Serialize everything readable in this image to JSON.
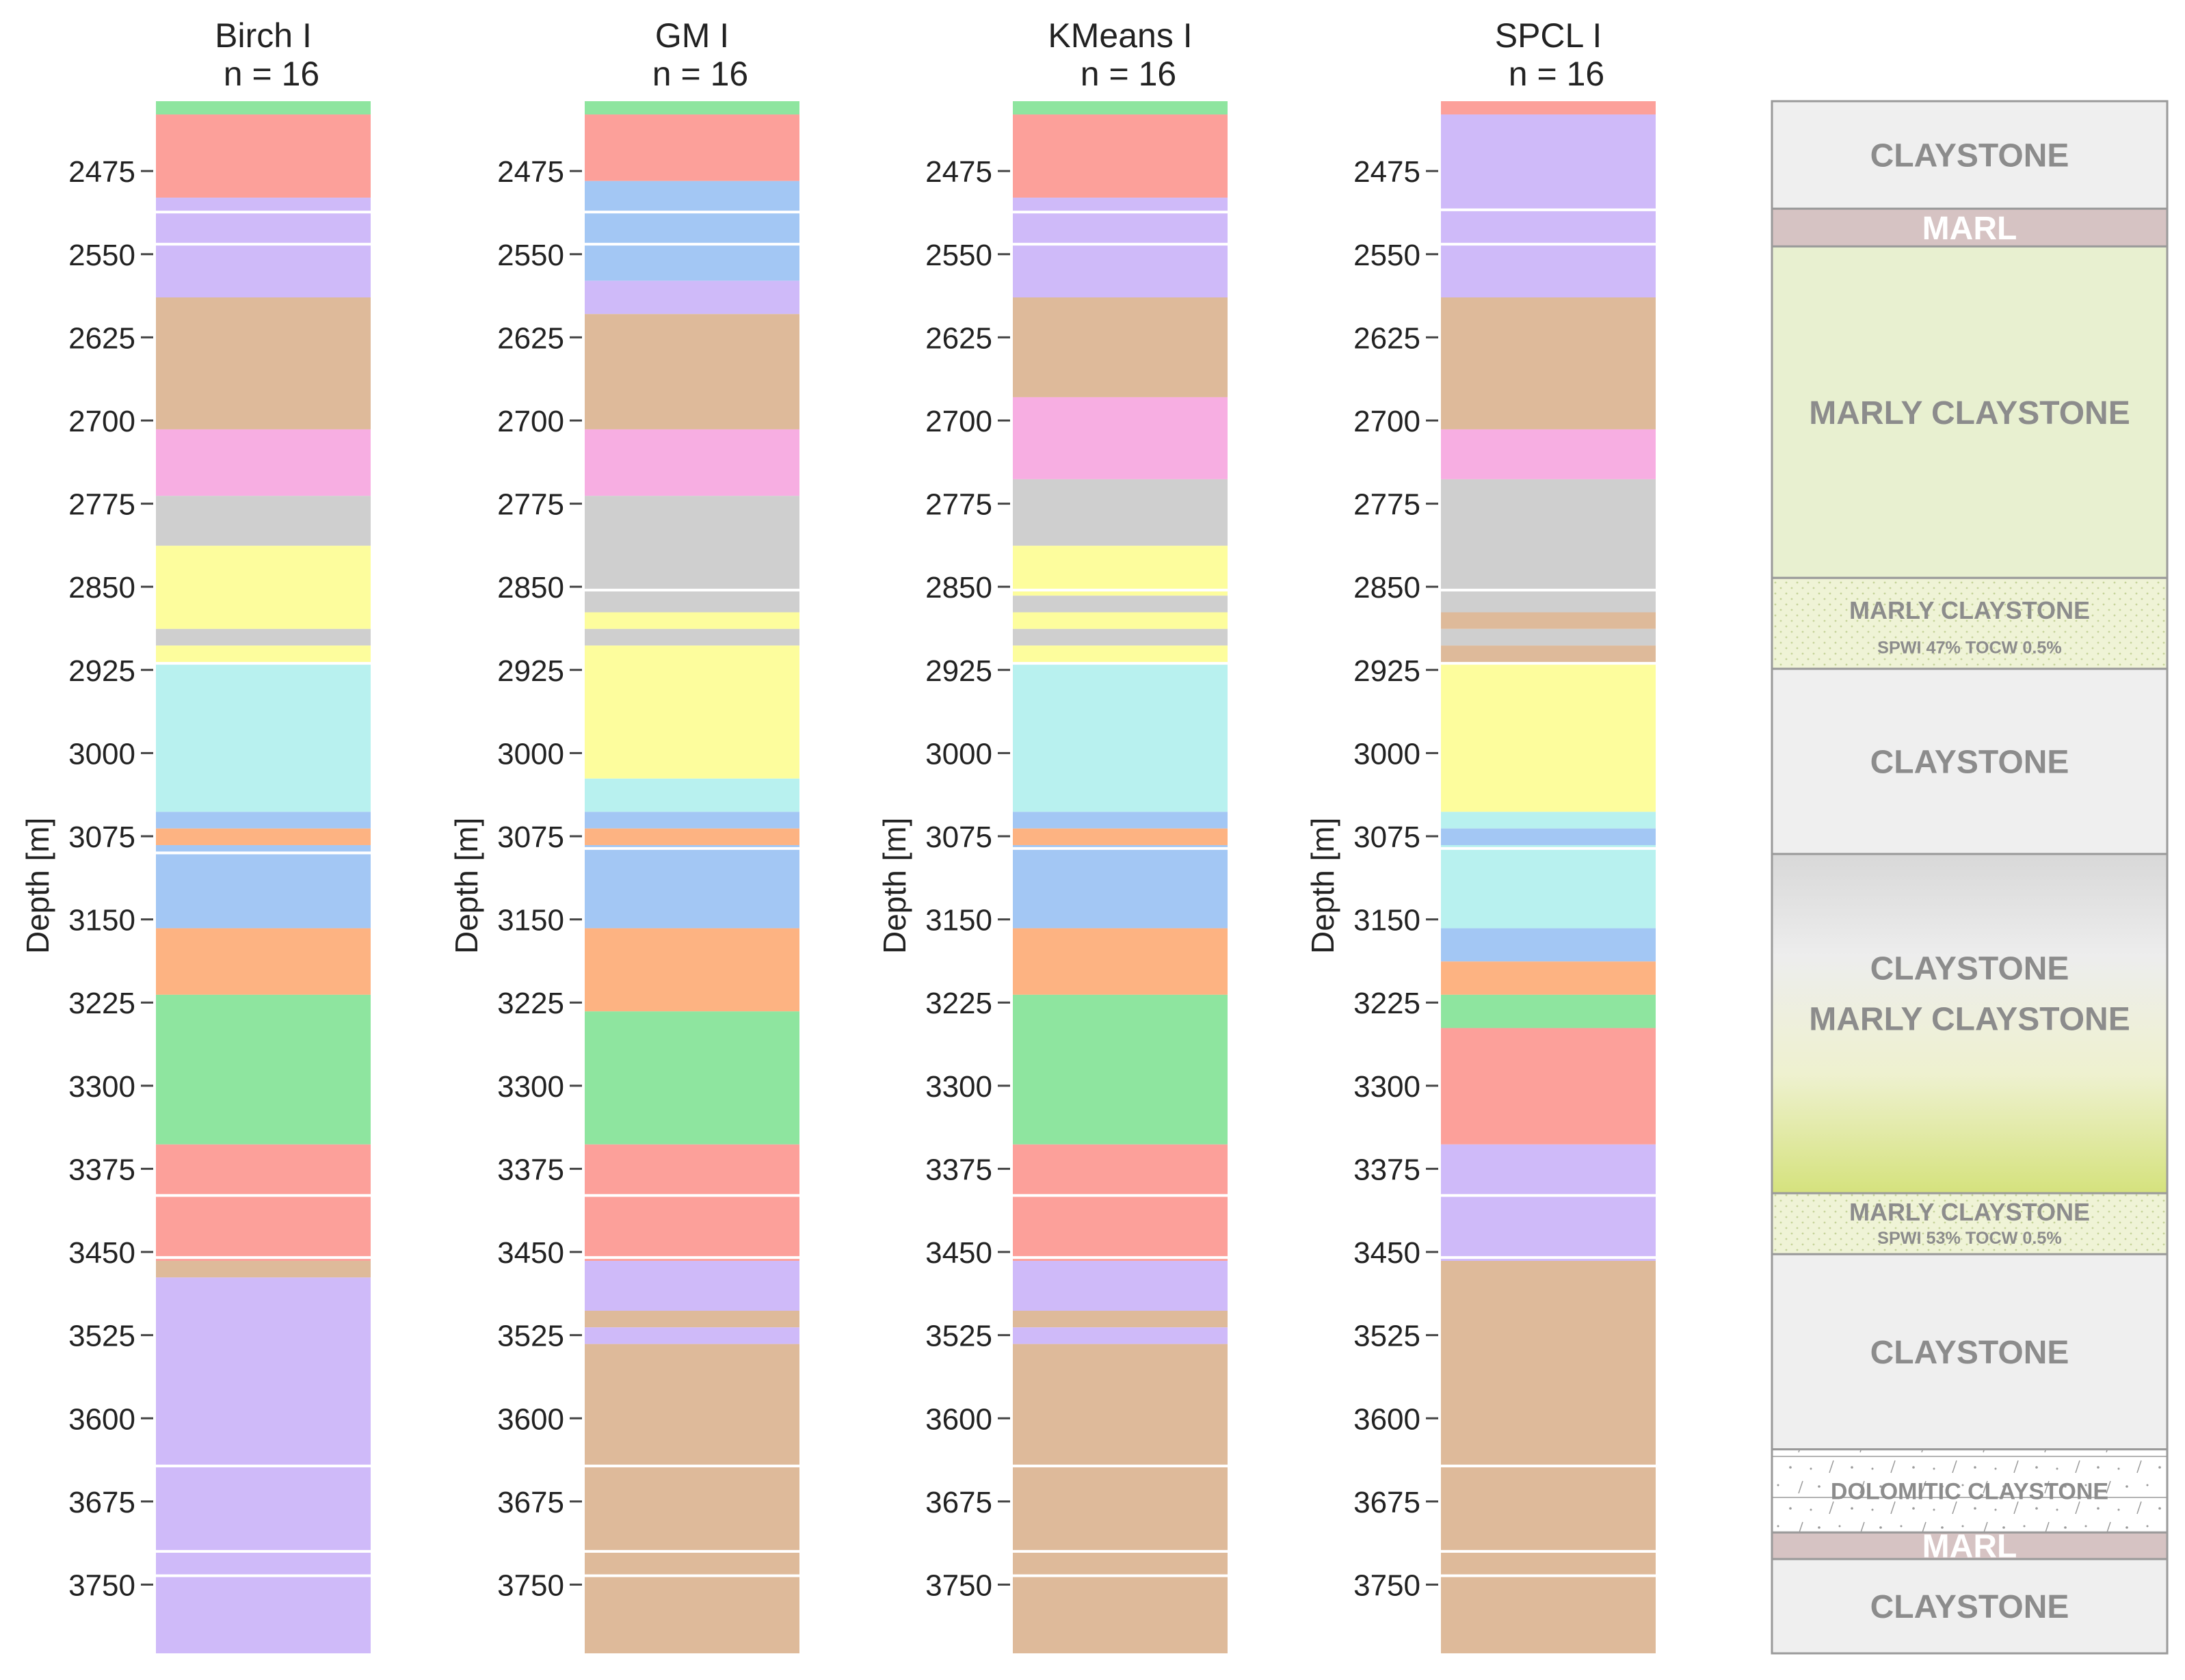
{
  "chart_data": {
    "type": "stacked-interval-columns",
    "y_axis": {
      "label": "Depth [m]",
      "ticks": [
        2475,
        2550,
        2625,
        2700,
        2775,
        2850,
        2925,
        3000,
        3075,
        3150,
        3225,
        3300,
        3375,
        3450,
        3525,
        3600,
        3675,
        3750
      ],
      "range": [
        2412,
        3812
      ],
      "inverted": true
    },
    "palette": {
      "green": "#8ee59f",
      "red": "#fca09a",
      "purple": "#cfbaf9",
      "tan": "#deba9a",
      "pink": "#f7aee2",
      "gray": "#cfcfcf",
      "yellow": "#fdfd9d",
      "cyan": "#b8f1ef",
      "blue": "#a3c7f4",
      "orange": "#fdb382"
    },
    "columns": [
      {
        "name": "Birch I",
        "n_label": "n = 16",
        "segments": [
          [
            "green",
            2412,
            2424
          ],
          [
            "red",
            2424,
            2499
          ],
          [
            "purple",
            2499,
            2589
          ],
          [
            "tan",
            2589,
            2708
          ],
          [
            "pink",
            2708,
            2768
          ],
          [
            "gray",
            2768,
            2813
          ],
          [
            "yellow",
            2813,
            2888
          ],
          [
            "gray",
            2888,
            2903
          ],
          [
            "yellow",
            2903,
            2918
          ],
          [
            "cyan",
            2918,
            3053
          ],
          [
            "blue",
            3053,
            3068
          ],
          [
            "orange",
            3068,
            3083
          ],
          [
            "blue",
            3083,
            3158
          ],
          [
            "orange",
            3158,
            3218
          ],
          [
            "green",
            3218,
            3353
          ],
          [
            "red",
            3353,
            3458
          ],
          [
            "tan",
            3458,
            3473
          ],
          [
            "purple",
            3473,
            3812
          ]
        ],
        "boundaries": [
          2512,
          2541,
          2919,
          3090,
          3399,
          3455,
          3643,
          3720,
          3742
        ]
      },
      {
        "name": "GM I",
        "n_label": "n = 16",
        "segments": [
          [
            "green",
            2412,
            2424
          ],
          [
            "red",
            2424,
            2484
          ],
          [
            "blue",
            2484,
            2574
          ],
          [
            "purple",
            2574,
            2604
          ],
          [
            "tan",
            2604,
            2708
          ],
          [
            "pink",
            2708,
            2768
          ],
          [
            "gray",
            2768,
            2873
          ],
          [
            "yellow",
            2873,
            2888
          ],
          [
            "gray",
            2888,
            2903
          ],
          [
            "yellow",
            2903,
            3023
          ],
          [
            "cyan",
            3023,
            3053
          ],
          [
            "blue",
            3053,
            3068
          ],
          [
            "orange",
            3068,
            3083
          ],
          [
            "blue",
            3083,
            3158
          ],
          [
            "orange",
            3158,
            3233
          ],
          [
            "green",
            3233,
            3353
          ],
          [
            "red",
            3353,
            3458
          ],
          [
            "purple",
            3458,
            3503
          ],
          [
            "tan",
            3503,
            3518
          ],
          [
            "purple",
            3518,
            3533
          ],
          [
            "tan",
            3533,
            3812
          ]
        ],
        "boundaries": [
          2512,
          2541,
          2853,
          3086,
          3399,
          3455,
          3643,
          3720,
          3742
        ]
      },
      {
        "name": "KMeans I",
        "n_label": "n = 16",
        "segments": [
          [
            "green",
            2412,
            2424
          ],
          [
            "red",
            2424,
            2499
          ],
          [
            "purple",
            2499,
            2589
          ],
          [
            "tan",
            2589,
            2679
          ],
          [
            "pink",
            2679,
            2753
          ],
          [
            "gray",
            2753,
            2813
          ],
          [
            "yellow",
            2813,
            2858
          ],
          [
            "gray",
            2858,
            2873
          ],
          [
            "yellow",
            2873,
            2888
          ],
          [
            "gray",
            2888,
            2903
          ],
          [
            "yellow",
            2903,
            2918
          ],
          [
            "cyan",
            2918,
            3053
          ],
          [
            "blue",
            3053,
            3068
          ],
          [
            "orange",
            3068,
            3083
          ],
          [
            "blue",
            3083,
            3158
          ],
          [
            "orange",
            3158,
            3218
          ],
          [
            "green",
            3218,
            3353
          ],
          [
            "red",
            3353,
            3458
          ],
          [
            "purple",
            3458,
            3503
          ],
          [
            "tan",
            3503,
            3518
          ],
          [
            "purple",
            3518,
            3533
          ],
          [
            "tan",
            3533,
            3812
          ]
        ],
        "boundaries": [
          2512,
          2541,
          2853,
          2919,
          3086,
          3399,
          3455,
          3643,
          3720,
          3742
        ]
      },
      {
        "name": "SPCL I",
        "n_label": "n = 16",
        "segments": [
          [
            "red",
            2412,
            2424
          ],
          [
            "purple",
            2424,
            2589
          ],
          [
            "tan",
            2589,
            2708
          ],
          [
            "pink",
            2708,
            2753
          ],
          [
            "gray",
            2753,
            2873
          ],
          [
            "tan",
            2873,
            2888
          ],
          [
            "gray",
            2888,
            2903
          ],
          [
            "tan",
            2903,
            2918
          ],
          [
            "yellow",
            2918,
            3053
          ],
          [
            "cyan",
            3053,
            3068
          ],
          [
            "blue",
            3068,
            3083
          ],
          [
            "cyan",
            3083,
            3158
          ],
          [
            "blue",
            3158,
            3188
          ],
          [
            "orange",
            3188,
            3218
          ],
          [
            "green",
            3218,
            3248
          ],
          [
            "red",
            3248,
            3353
          ],
          [
            "purple",
            3353,
            3458
          ],
          [
            "tan",
            3458,
            3812
          ]
        ],
        "boundaries": [
          2510,
          2541,
          2853,
          2919,
          3086,
          3399,
          3455,
          3643,
          3720,
          3742
        ]
      }
    ],
    "lithology": [
      {
        "label": "CLAYSTONE",
        "from": 2412,
        "to": 2509,
        "style": "plain"
      },
      {
        "label": "MARL",
        "from": 2509,
        "to": 2543,
        "style": "marl"
      },
      {
        "label": "MARLY CLAYSTONE",
        "from": 2543,
        "to": 2842,
        "style": "marly"
      },
      {
        "label": "MARLY CLAYSTONE",
        "sublabel": "SPWI 47% TOCW 0.5%",
        "from": 2842,
        "to": 2924,
        "style": "marly-dotted"
      },
      {
        "label": "CLAYSTONE",
        "from": 2924,
        "to": 3091,
        "style": "plain"
      },
      {
        "label": "CLAYSTONE",
        "label2": "MARLY CLAYSTONE",
        "from": 3091,
        "to": 3397,
        "style": "gradient"
      },
      {
        "label": "MARLY CLAYSTONE",
        "sublabel": "SPWI 53% TOCW 0.5%",
        "from": 3397,
        "to": 3452,
        "style": "marly-dotted"
      },
      {
        "label": "CLAYSTONE",
        "from": 3452,
        "to": 3628,
        "style": "plain"
      },
      {
        "label": "DOLOMITIC CLAYSTONE",
        "from": 3628,
        "to": 3703,
        "style": "dolomitic"
      },
      {
        "label": "MARL",
        "from": 3703,
        "to": 3727,
        "style": "marl"
      },
      {
        "label": "CLAYSTONE",
        "from": 3727,
        "to": 3812,
        "style": "plain"
      }
    ]
  }
}
